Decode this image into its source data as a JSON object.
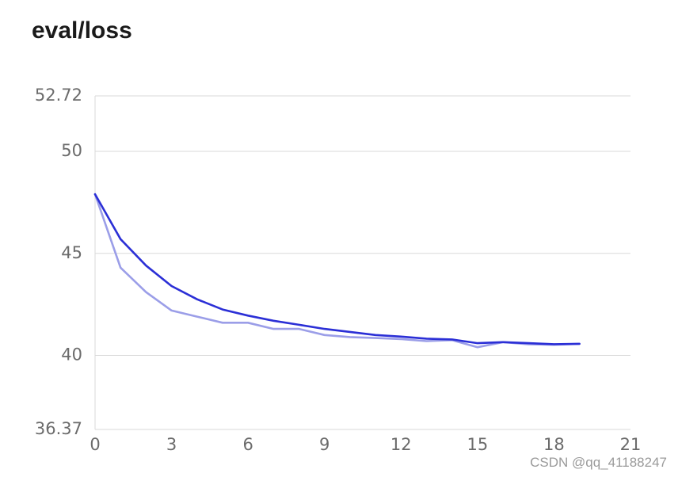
{
  "chart_data": {
    "type": "line",
    "title": "eval/loss",
    "xlabel": "",
    "ylabel": "",
    "xlim": [
      0,
      21
    ],
    "ylim": [
      36.37,
      52.72
    ],
    "x_ticks": [
      0,
      3,
      6,
      9,
      12,
      15,
      18,
      21
    ],
    "y_ticks": [
      36.37,
      40,
      45,
      50,
      52.72
    ],
    "grid": "horizontal",
    "series": [
      {
        "color": "#9b9ee8",
        "x": [
          0,
          1,
          2,
          3,
          4,
          5,
          6,
          7,
          8,
          9,
          10,
          11,
          12,
          13,
          14,
          15,
          16,
          17,
          18,
          19
        ],
        "values": [
          47.9,
          44.3,
          43.1,
          42.2,
          41.9,
          41.6,
          41.6,
          41.3,
          41.3,
          41.0,
          40.9,
          40.85,
          40.8,
          40.7,
          40.75,
          40.4,
          40.65,
          40.55,
          40.52,
          40.57
        ]
      },
      {
        "color": "#2b2fd6",
        "x": [
          0,
          1,
          2,
          3,
          4,
          5,
          6,
          7,
          8,
          9,
          10,
          11,
          12,
          13,
          14,
          15,
          16,
          17,
          18,
          19
        ],
        "values": [
          47.9,
          45.7,
          44.4,
          43.4,
          42.75,
          42.25,
          41.95,
          41.7,
          41.5,
          41.3,
          41.15,
          41.0,
          40.92,
          40.82,
          40.78,
          40.6,
          40.65,
          40.6,
          40.55,
          40.57
        ]
      }
    ]
  },
  "watermark": "CSDN @qq_41188247"
}
